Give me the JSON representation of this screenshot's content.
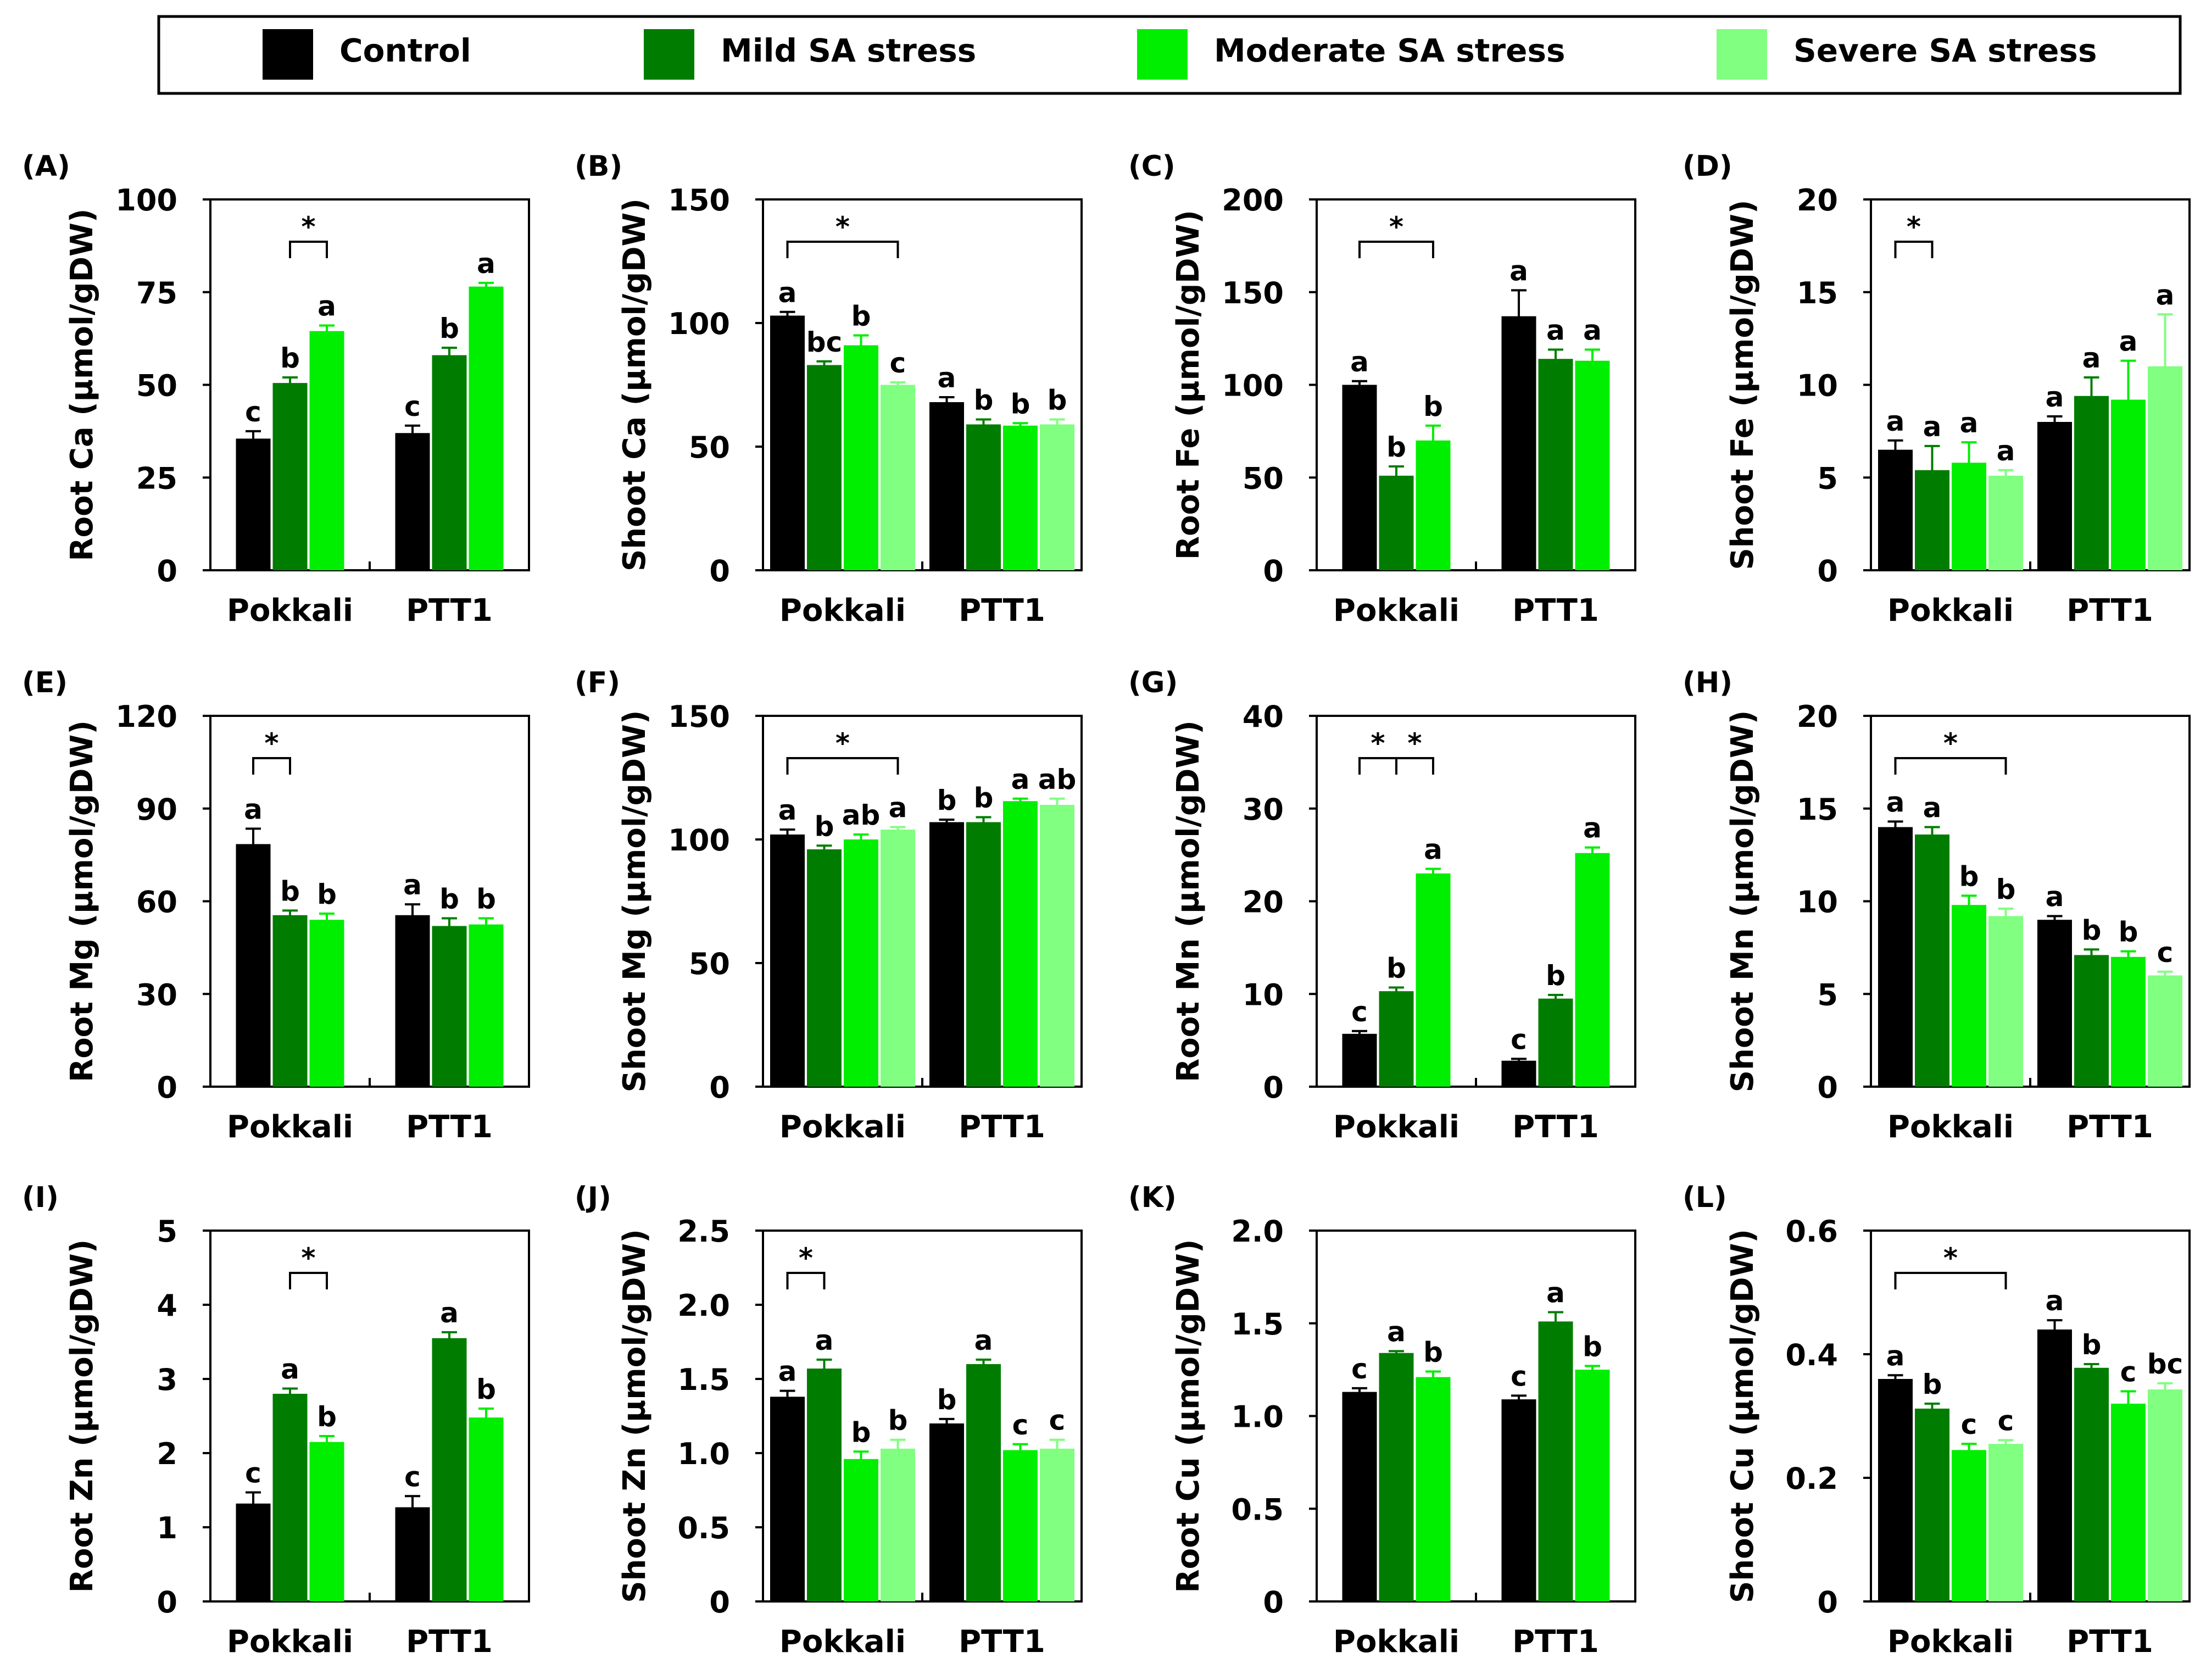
{
  "colors": {
    "Control": "#000000",
    "Mild SA stress": "#007d00",
    "Moderate SA stress": "#00ee00",
    "Severe SA stress": "#80ff80",
    "axis": "#000000"
  },
  "legend": {
    "items": [
      {
        "label": "Control",
        "color": "#000000"
      },
      {
        "label": "Mild SA stress",
        "color": "#007d00"
      },
      {
        "label": "Moderate SA stress",
        "color": "#00ee00"
      },
      {
        "label": "Severe SA stress",
        "color": "#80ff80"
      }
    ]
  },
  "chart_data": [
    {
      "type": "bar",
      "panel_label": "(A)",
      "ylabel": "Root Ca (µmol/gDW)",
      "categories": [
        "Pokkali",
        "PTT1"
      ],
      "ylim": [
        0,
        100
      ],
      "yticks": [
        "0",
        "25",
        "50",
        "75",
        "100"
      ],
      "series": [
        {
          "name": "Control",
          "values": [
            35.5,
            37
          ],
          "errors": [
            2,
            2
          ],
          "letters": [
            "c",
            "c"
          ]
        },
        {
          "name": "Mild SA stress",
          "values": [
            50.5,
            58
          ],
          "errors": [
            1.5,
            2
          ],
          "letters": [
            "b",
            "b"
          ]
        },
        {
          "name": "Moderate SA stress",
          "values": [
            64.5,
            76.5
          ],
          "errors": [
            1.5,
            1
          ],
          "letters": [
            "a",
            "a"
          ]
        }
      ],
      "significance": [
        {
          "group": 0,
          "from": 1,
          "to": 2,
          "label": "*"
        }
      ]
    },
    {
      "type": "bar",
      "panel_label": "(B)",
      "ylabel": "Shoot Ca (µmol/gDW)",
      "categories": [
        "Pokkali",
        "PTT1"
      ],
      "ylim": [
        0,
        150
      ],
      "yticks": [
        "0",
        "50",
        "100",
        "150"
      ],
      "series": [
        {
          "name": "Control",
          "values": [
            103,
            68
          ],
          "errors": [
            1.5,
            2
          ],
          "letters": [
            "a",
            "a"
          ]
        },
        {
          "name": "Mild SA stress",
          "values": [
            83,
            59
          ],
          "errors": [
            1.5,
            2
          ],
          "letters": [
            "bc",
            "b"
          ]
        },
        {
          "name": "Moderate SA stress",
          "values": [
            91,
            58.5
          ],
          "errors": [
            4,
            1
          ],
          "letters": [
            "b",
            "b"
          ]
        },
        {
          "name": "Severe SA stress",
          "values": [
            75,
            59
          ],
          "errors": [
            1,
            2
          ],
          "letters": [
            "c",
            "b"
          ]
        }
      ],
      "significance": [
        {
          "group": 0,
          "from": 0,
          "to": 3,
          "label": "*"
        }
      ]
    },
    {
      "type": "bar",
      "panel_label": "(C)",
      "ylabel": "Root Fe (µmol/gDW)",
      "categories": [
        "Pokkali",
        "PTT1"
      ],
      "ylim": [
        0,
        200
      ],
      "yticks": [
        "0",
        "50",
        "100",
        "150",
        "200"
      ],
      "series": [
        {
          "name": "Control",
          "values": [
            100,
            137
          ],
          "errors": [
            2,
            14
          ],
          "letters": [
            "a",
            "a"
          ]
        },
        {
          "name": "Mild SA stress",
          "values": [
            51,
            114
          ],
          "errors": [
            5,
            5
          ],
          "letters": [
            "b",
            "a"
          ]
        },
        {
          "name": "Moderate SA stress",
          "values": [
            70,
            113
          ],
          "errors": [
            8,
            6
          ],
          "letters": [
            "b",
            "a"
          ]
        }
      ],
      "significance": [
        {
          "group": 0,
          "from": 0,
          "to": 2,
          "label": "*"
        }
      ]
    },
    {
      "type": "bar",
      "panel_label": "(D)",
      "ylabel": "Shoot Fe (µmol/gDW)",
      "categories": [
        "Pokkali",
        "PTT1"
      ],
      "ylim": [
        0,
        20
      ],
      "yticks": [
        "0",
        "5",
        "10",
        "15",
        "20"
      ],
      "series": [
        {
          "name": "Control",
          "values": [
            6.5,
            8
          ],
          "errors": [
            0.5,
            0.3
          ],
          "letters": [
            "a",
            "a"
          ]
        },
        {
          "name": "Mild SA stress",
          "values": [
            5.4,
            9.4
          ],
          "errors": [
            1.3,
            1
          ],
          "letters": [
            "a",
            "a"
          ]
        },
        {
          "name": "Moderate SA stress",
          "values": [
            5.8,
            9.2
          ],
          "errors": [
            1.1,
            2.1
          ],
          "letters": [
            "a",
            "a"
          ]
        },
        {
          "name": "Severe SA stress",
          "values": [
            5.1,
            11
          ],
          "errors": [
            0.3,
            2.8
          ],
          "letters": [
            "a",
            "a"
          ]
        }
      ],
      "significance": [
        {
          "group": 0,
          "from": 0,
          "to": 1,
          "label": "*"
        }
      ]
    },
    {
      "type": "bar",
      "panel_label": "(E)",
      "ylabel": "Root Mg (µmol/gDW)",
      "categories": [
        "Pokkali",
        "PTT1"
      ],
      "ylim": [
        0,
        120
      ],
      "yticks": [
        "0",
        "30",
        "60",
        "90",
        "120"
      ],
      "series": [
        {
          "name": "Control",
          "values": [
            78.5,
            55.5
          ],
          "errors": [
            5,
            3.5
          ],
          "letters": [
            "a",
            "a"
          ]
        },
        {
          "name": "Mild SA stress",
          "values": [
            55.5,
            52
          ],
          "errors": [
            1.5,
            2.5
          ],
          "letters": [
            "b",
            "b"
          ]
        },
        {
          "name": "Moderate SA stress",
          "values": [
            54,
            52.5
          ],
          "errors": [
            2,
            2
          ],
          "letters": [
            "b",
            "b"
          ]
        }
      ],
      "significance": [
        {
          "group": 0,
          "from": 0,
          "to": 1,
          "label": "*"
        }
      ]
    },
    {
      "type": "bar",
      "panel_label": "(F)",
      "ylabel": "Shoot Mg (µmol/gDW)",
      "categories": [
        "Pokkali",
        "PTT1"
      ],
      "ylim": [
        0,
        150
      ],
      "yticks": [
        "0",
        "50",
        "100",
        "150"
      ],
      "series": [
        {
          "name": "Control",
          "values": [
            102,
            107
          ],
          "errors": [
            2,
            1
          ],
          "letters": [
            "a",
            "b"
          ]
        },
        {
          "name": "Mild SA stress",
          "values": [
            96,
            107
          ],
          "errors": [
            1.5,
            2
          ],
          "letters": [
            "b",
            "b"
          ]
        },
        {
          "name": "Moderate SA stress",
          "values": [
            100,
            115.5
          ],
          "errors": [
            2,
            1
          ],
          "letters": [
            "ab",
            "a"
          ]
        },
        {
          "name": "Severe SA stress",
          "values": [
            104,
            114
          ],
          "errors": [
            1,
            2.5
          ],
          "letters": [
            "a",
            "ab"
          ]
        }
      ],
      "significance": [
        {
          "group": 0,
          "from": 0,
          "to": 3,
          "label": "*"
        }
      ]
    },
    {
      "type": "bar",
      "panel_label": "(G)",
      "ylabel": "Root Mn (µmol/gDW)",
      "categories": [
        "Pokkali",
        "PTT1"
      ],
      "ylim": [
        0,
        40
      ],
      "yticks": [
        "0",
        "10",
        "20",
        "30",
        "40"
      ],
      "series": [
        {
          "name": "Control",
          "values": [
            5.7,
            2.8
          ],
          "errors": [
            0.3,
            0.2
          ],
          "letters": [
            "c",
            "c"
          ]
        },
        {
          "name": "Mild SA stress",
          "values": [
            10.3,
            9.5
          ],
          "errors": [
            0.4,
            0.4
          ],
          "letters": [
            "b",
            "b"
          ]
        },
        {
          "name": "Moderate SA stress",
          "values": [
            23,
            25.2
          ],
          "errors": [
            0.5,
            0.6
          ],
          "letters": [
            "a",
            "a"
          ]
        }
      ],
      "significance": [
        {
          "group": 0,
          "from": 0,
          "to": 1,
          "label": "*"
        },
        {
          "group": 0,
          "from": 1,
          "to": 2,
          "label": "*"
        }
      ]
    },
    {
      "type": "bar",
      "panel_label": "(H)",
      "ylabel": "Shoot Mn (µmol/gDW)",
      "categories": [
        "Pokkali",
        "PTT1"
      ],
      "ylim": [
        0,
        20
      ],
      "yticks": [
        "0",
        "5",
        "10",
        "15",
        "20"
      ],
      "series": [
        {
          "name": "Control",
          "values": [
            14,
            9
          ],
          "errors": [
            0.3,
            0.2
          ],
          "letters": [
            "a",
            "a"
          ]
        },
        {
          "name": "Mild SA stress",
          "values": [
            13.6,
            7.1
          ],
          "errors": [
            0.4,
            0.3
          ],
          "letters": [
            "a",
            "b"
          ]
        },
        {
          "name": "Moderate SA stress",
          "values": [
            9.8,
            7
          ],
          "errors": [
            0.5,
            0.3
          ],
          "letters": [
            "b",
            "b"
          ]
        },
        {
          "name": "Severe SA stress",
          "values": [
            9.2,
            6
          ],
          "errors": [
            0.4,
            0.2
          ],
          "letters": [
            "b",
            "c"
          ]
        }
      ],
      "significance": [
        {
          "group": 0,
          "from": 0,
          "to": 3,
          "label": "*"
        }
      ]
    },
    {
      "type": "bar",
      "panel_label": "(I)",
      "ylabel": "Root Zn (µmol/gDW)",
      "categories": [
        "Pokkali",
        "PTT1"
      ],
      "ylim": [
        0,
        5
      ],
      "yticks": [
        "0",
        "1",
        "2",
        "3",
        "4",
        "5"
      ],
      "series": [
        {
          "name": "Control",
          "values": [
            1.32,
            1.27
          ],
          "errors": [
            0.15,
            0.15
          ],
          "letters": [
            "c",
            "c"
          ]
        },
        {
          "name": "Mild SA stress",
          "values": [
            2.8,
            3.55
          ],
          "errors": [
            0.07,
            0.08
          ],
          "letters": [
            "a",
            "a"
          ]
        },
        {
          "name": "Moderate SA stress",
          "values": [
            2.15,
            2.48
          ],
          "errors": [
            0.08,
            0.12
          ],
          "letters": [
            "b",
            "b"
          ]
        }
      ],
      "significance": [
        {
          "group": 0,
          "from": 1,
          "to": 2,
          "label": "*"
        }
      ]
    },
    {
      "type": "bar",
      "panel_label": "(J)",
      "ylabel": "Shoot Zn (µmol/gDW)",
      "categories": [
        "Pokkali",
        "PTT1"
      ],
      "ylim": [
        0,
        2.5
      ],
      "yticks": [
        "0",
        "0.5",
        "1.0",
        "1.5",
        "2.0",
        "2.5"
      ],
      "series": [
        {
          "name": "Control",
          "values": [
            1.38,
            1.2
          ],
          "errors": [
            0.04,
            0.03
          ],
          "letters": [
            "a",
            "b"
          ]
        },
        {
          "name": "Mild SA stress",
          "values": [
            1.57,
            1.6
          ],
          "errors": [
            0.06,
            0.03
          ],
          "letters": [
            "a",
            "a"
          ]
        },
        {
          "name": "Moderate SA stress",
          "values": [
            0.96,
            1.02
          ],
          "errors": [
            0.05,
            0.04
          ],
          "letters": [
            "b",
            "c"
          ]
        },
        {
          "name": "Severe SA stress",
          "values": [
            1.03,
            1.03
          ],
          "errors": [
            0.06,
            0.06
          ],
          "letters": [
            "b",
            "c"
          ]
        }
      ],
      "significance": [
        {
          "group": 0,
          "from": 0,
          "to": 1,
          "label": "*"
        }
      ]
    },
    {
      "type": "bar",
      "panel_label": "(K)",
      "ylabel": "Root Cu (µmol/gDW)",
      "categories": [
        "Pokkali",
        "PTT1"
      ],
      "ylim": [
        0,
        2.0
      ],
      "yticks": [
        "0",
        "0.5",
        "1.0",
        "1.5",
        "2.0"
      ],
      "series": [
        {
          "name": "Control",
          "values": [
            1.13,
            1.09
          ],
          "errors": [
            0.02,
            0.02
          ],
          "letters": [
            "c",
            "c"
          ]
        },
        {
          "name": "Mild SA stress",
          "values": [
            1.34,
            1.51
          ],
          "errors": [
            0.01,
            0.05
          ],
          "letters": [
            "a",
            "a"
          ]
        },
        {
          "name": "Moderate SA stress",
          "values": [
            1.21,
            1.25
          ],
          "errors": [
            0.03,
            0.02
          ],
          "letters": [
            "b",
            "b"
          ]
        }
      ],
      "significance": []
    },
    {
      "type": "bar",
      "panel_label": "(L)",
      "ylabel": "Shoot Cu (µmol/gDW)",
      "categories": [
        "Pokkali",
        "PTT1"
      ],
      "ylim": [
        0,
        0.6
      ],
      "yticks": [
        "0",
        "0.2",
        "0.4",
        "0.6"
      ],
      "series": [
        {
          "name": "Control",
          "values": [
            0.36,
            0.44
          ],
          "errors": [
            0.006,
            0.015
          ],
          "letters": [
            "a",
            "a"
          ]
        },
        {
          "name": "Mild SA stress",
          "values": [
            0.312,
            0.378
          ],
          "errors": [
            0.008,
            0.006
          ],
          "letters": [
            "b",
            "b"
          ]
        },
        {
          "name": "Moderate SA stress",
          "values": [
            0.245,
            0.32
          ],
          "errors": [
            0.01,
            0.02
          ],
          "letters": [
            "c",
            "c"
          ]
        },
        {
          "name": "Severe SA stress",
          "values": [
            0.255,
            0.343
          ],
          "errors": [
            0.006,
            0.01
          ],
          "letters": [
            "c",
            "bc"
          ]
        }
      ],
      "significance": [
        {
          "group": 0,
          "from": 0,
          "to": 3,
          "label": "*"
        }
      ]
    }
  ]
}
